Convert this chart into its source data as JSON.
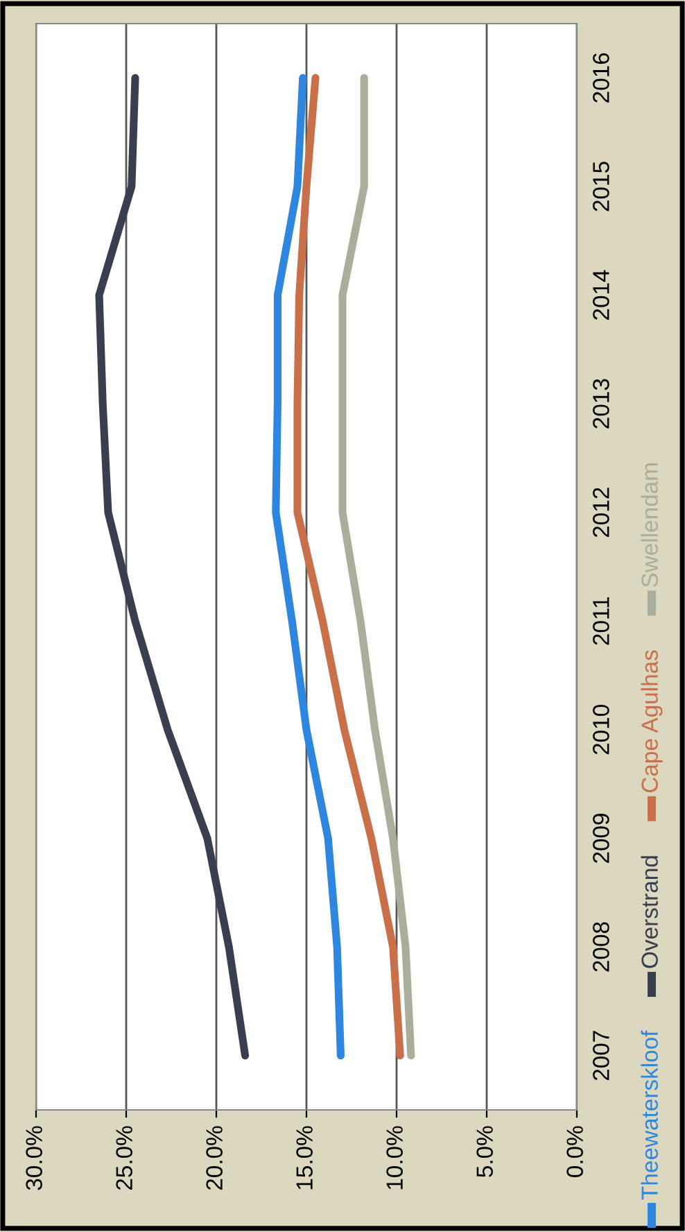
{
  "chart_data": {
    "type": "line",
    "categories": [
      "2016",
      "2015",
      "2014",
      "2013",
      "2012",
      "2011",
      "2010",
      "2009",
      "2008",
      "2007"
    ],
    "series": [
      {
        "name": "Theewaterskloof",
        "color": "#2e86de",
        "values": [
          15.2,
          15.5,
          16.6,
          16.6,
          16.7,
          15.8,
          15.0,
          13.8,
          13.3,
          13.1
        ]
      },
      {
        "name": "Overstrand",
        "color": "#3a3f4f",
        "values": [
          24.5,
          24.7,
          26.5,
          26.3,
          26.0,
          24.5,
          22.7,
          20.5,
          19.3,
          18.4
        ]
      },
      {
        "name": "Cape Agulhas",
        "color": "#c8704a",
        "values": [
          14.5,
          15.0,
          15.4,
          15.5,
          15.5,
          14.1,
          12.9,
          11.4,
          10.2,
          9.8
        ]
      },
      {
        "name": "Swellendam",
        "color": "#a9ad9a",
        "values": [
          11.8,
          11.8,
          13.0,
          13.0,
          13.0,
          12.0,
          11.2,
          10.2,
          9.5,
          9.2
        ]
      }
    ],
    "orientation": "horizontal",
    "xlim": [
      30,
      0
    ],
    "xticks": [
      {
        "value": 0,
        "label": "0.0%"
      },
      {
        "value": 5,
        "label": "5.0%"
      },
      {
        "value": 10,
        "label": "10.0%"
      },
      {
        "value": 15,
        "label": "15.0%"
      },
      {
        "value": 20,
        "label": "20.0%"
      },
      {
        "value": 25,
        "label": "25.0%"
      },
      {
        "value": 30,
        "label": "30.0%"
      }
    ],
    "grid": "x",
    "legend": "right",
    "marker": "none",
    "line_style": "solid"
  }
}
